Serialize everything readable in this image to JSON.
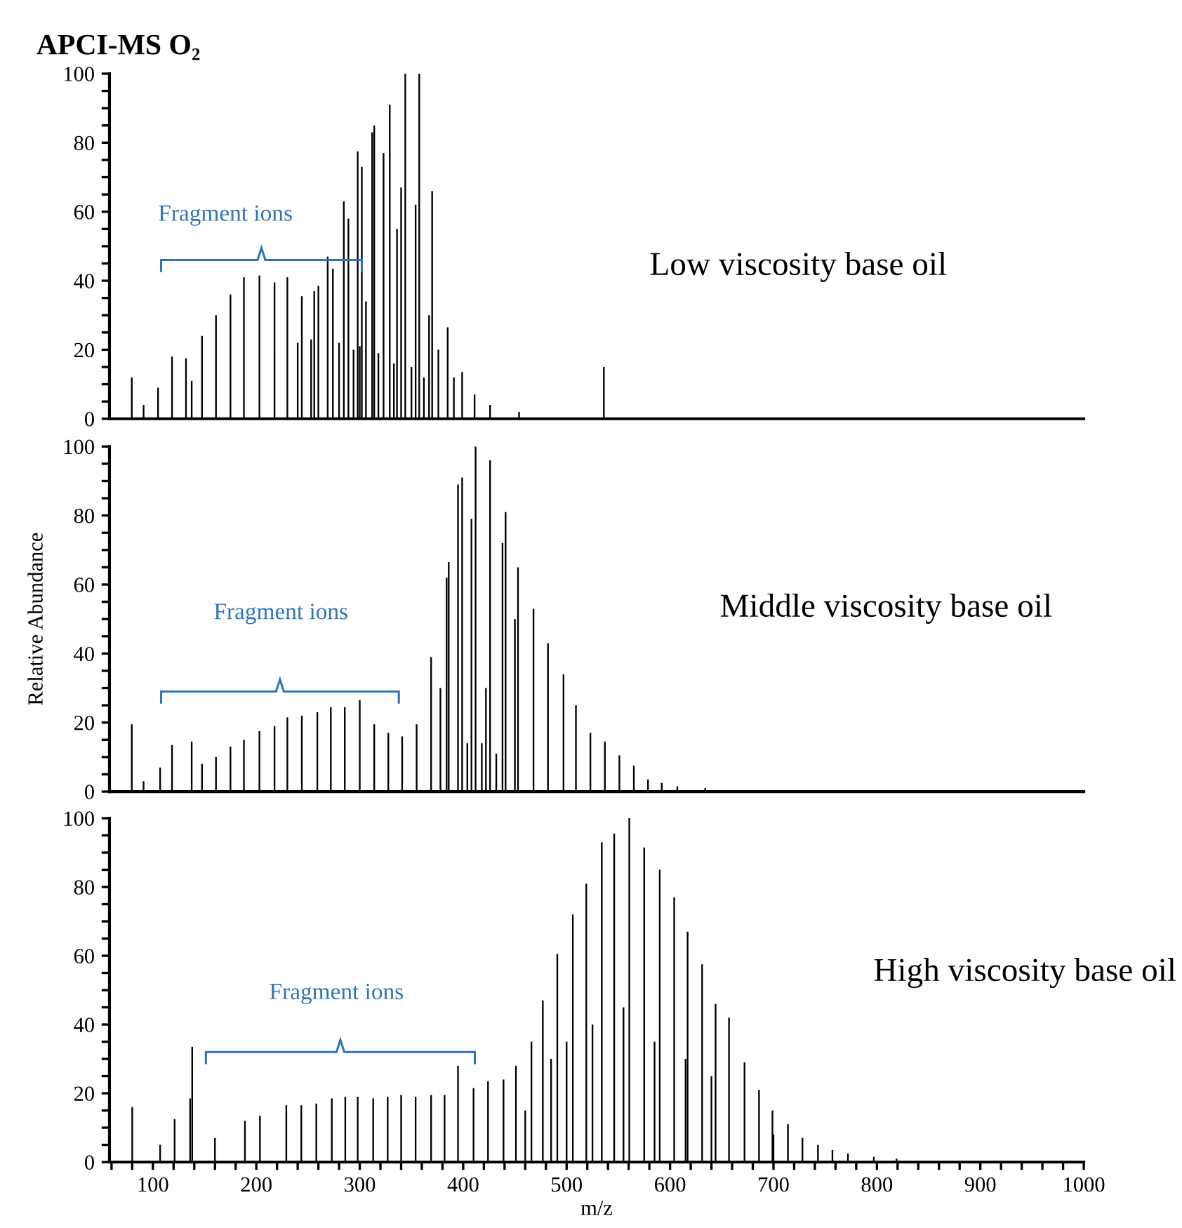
{
  "chart_data": [
    {
      "type": "bar",
      "title": "APCI-MS O₂",
      "xlim": [
        58,
        1000
      ],
      "ylim": [
        0,
        100
      ],
      "tick_labels": "y",
      "yticks": [
        0,
        {
          "value": 5,
          "label": null
        },
        {
          "value": 10,
          "label": null
        },
        {
          "value": 15,
          "label": null
        },
        20,
        {
          "value": 25,
          "label": null
        },
        {
          "value": 30,
          "label": null
        },
        {
          "value": 35,
          "label": null
        },
        40,
        {
          "value": 45,
          "label": null
        },
        {
          "value": 50,
          "label": null
        },
        {
          "value": 55,
          "label": null
        },
        60,
        {
          "value": 65,
          "label": null
        },
        {
          "value": 70,
          "label": null
        },
        {
          "value": 75,
          "label": null
        },
        80,
        {
          "value": 85,
          "label": null
        },
        {
          "value": 90,
          "label": null
        },
        {
          "value": 95,
          "label": null
        },
        100
      ],
      "annotations": [
        "Fragment ions",
        "Low viscosity base oil"
      ],
      "series": [
        {
          "color": "#000000",
          "x": [
            79.6,
            91,
            105,
            118.5,
            132,
            137.5,
            147.5,
            161,
            175,
            188,
            203,
            217.6,
            230,
            240,
            244,
            253,
            256,
            260,
            269,
            274,
            280,
            284.6,
            289,
            294,
            298,
            300,
            302,
            306,
            312,
            314,
            318,
            323,
            329,
            333,
            336,
            340,
            344,
            350,
            354,
            357.5,
            362,
            367,
            370,
            376,
            385,
            391,
            399,
            411,
            426,
            454,
            536
          ],
          "values": [
            12,
            4,
            9,
            18,
            17.5,
            11,
            24,
            30,
            36,
            41,
            41.5,
            39.5,
            41,
            22,
            35.5,
            23,
            37,
            38.5,
            47,
            43.5,
            22,
            63,
            58,
            20,
            77.5,
            21,
            73,
            34,
            83,
            85,
            19,
            77,
            91,
            16,
            55,
            67,
            100,
            15,
            62,
            100,
            12,
            30,
            66,
            20,
            26.5,
            12,
            13.5,
            7,
            4,
            2,
            15
          ]
        }
      ]
    },
    {
      "type": "bar",
      "ylabel": "Relative Abundance",
      "xlim": [
        58,
        1000
      ],
      "ylim": [
        0,
        100
      ],
      "tick_labels": "y",
      "yticks": [
        0,
        {
          "value": 5,
          "label": null
        },
        {
          "value": 10,
          "label": null
        },
        {
          "value": 15,
          "label": null
        },
        20,
        {
          "value": 25,
          "label": null
        },
        {
          "value": 30,
          "label": null
        },
        {
          "value": 35,
          "label": null
        },
        40,
        {
          "value": 45,
          "label": null
        },
        {
          "value": 50,
          "label": null
        },
        {
          "value": 55,
          "label": null
        },
        60,
        {
          "value": 65,
          "label": null
        },
        {
          "value": 70,
          "label": null
        },
        {
          "value": 75,
          "label": null
        },
        80,
        {
          "value": 85,
          "label": null
        },
        {
          "value": 90,
          "label": null
        },
        {
          "value": 95,
          "label": null
        },
        100
      ],
      "annotations": [
        "Fragment ions",
        "Middle viscosity base oil"
      ],
      "series": [
        {
          "color": "#000000",
          "x": [
            79.6,
            91,
            107,
            118.5,
            137.5,
            147.5,
            161,
            175,
            188,
            203,
            217.6,
            230,
            244,
            259,
            272,
            285.5,
            300,
            314,
            327.6,
            341,
            355,
            369,
            378,
            384,
            386,
            395,
            399,
            404,
            408,
            412,
            418,
            422,
            426,
            432,
            438,
            441,
            450,
            453,
            468,
            482,
            497,
            509,
            523,
            537,
            551,
            565,
            578.7,
            592,
            607,
            634
          ],
          "values": [
            19.5,
            3,
            7,
            13.5,
            14.5,
            8,
            10,
            13,
            15,
            17.5,
            19,
            21.5,
            22,
            23,
            24.5,
            24.5,
            26.5,
            19.5,
            17,
            16,
            19.5,
            39,
            30,
            62,
            66.5,
            89,
            91,
            14,
            79,
            100,
            14,
            30,
            96,
            11,
            72,
            81,
            50,
            65,
            53,
            43,
            34,
            25,
            17,
            14.5,
            10.5,
            7.5,
            3.5,
            2.5,
            1.5,
            1
          ]
        }
      ]
    },
    {
      "type": "bar",
      "xlabel": "m/z",
      "xlim": [
        58,
        1000
      ],
      "ylim": [
        0,
        100
      ],
      "xticks": [
        {
          "value": 60,
          "label": null
        },
        {
          "value": 80,
          "label": null
        },
        100,
        {
          "value": 120,
          "label": null
        },
        {
          "value": 140,
          "label": null
        },
        {
          "value": 160,
          "label": null
        },
        {
          "value": 180,
          "label": null
        },
        200,
        {
          "value": 220,
          "label": null
        },
        {
          "value": 240,
          "label": null
        },
        {
          "value": 260,
          "label": null
        },
        {
          "value": 280,
          "label": null
        },
        300,
        {
          "value": 320,
          "label": null
        },
        {
          "value": 340,
          "label": null
        },
        {
          "value": 360,
          "label": null
        },
        {
          "value": 380,
          "label": null
        },
        400,
        {
          "value": 420,
          "label": null
        },
        {
          "value": 440,
          "label": null
        },
        {
          "value": 460,
          "label": null
        },
        {
          "value": 480,
          "label": null
        },
        500,
        {
          "value": 520,
          "label": null
        },
        {
          "value": 540,
          "label": null
        },
        {
          "value": 560,
          "label": null
        },
        {
          "value": 580,
          "label": null
        },
        600,
        {
          "value": 620,
          "label": null
        },
        {
          "value": 640,
          "label": null
        },
        {
          "value": 660,
          "label": null
        },
        {
          "value": 680,
          "label": null
        },
        700,
        {
          "value": 720,
          "label": null
        },
        {
          "value": 740,
          "label": null
        },
        {
          "value": 760,
          "label": null
        },
        {
          "value": 780,
          "label": null
        },
        800,
        {
          "value": 820,
          "label": null
        },
        {
          "value": 840,
          "label": null
        },
        {
          "value": 860,
          "label": null
        },
        {
          "value": 880,
          "label": null
        },
        900,
        {
          "value": 920,
          "label": null
        },
        {
          "value": 940,
          "label": null
        },
        {
          "value": 960,
          "label": null
        },
        {
          "value": 980,
          "label": null
        },
        1000
      ],
      "yticks": [
        0,
        {
          "value": 5,
          "label": null
        },
        {
          "value": 10,
          "label": null
        },
        {
          "value": 15,
          "label": null
        },
        20,
        {
          "value": 25,
          "label": null
        },
        {
          "value": 30,
          "label": null
        },
        {
          "value": 35,
          "label": null
        },
        40,
        {
          "value": 45,
          "label": null
        },
        {
          "value": 50,
          "label": null
        },
        {
          "value": 55,
          "label": null
        },
        60,
        {
          "value": 65,
          "label": null
        },
        {
          "value": 70,
          "label": null
        },
        {
          "value": 75,
          "label": null
        },
        80,
        {
          "value": 85,
          "label": null
        },
        {
          "value": 90,
          "label": null
        },
        {
          "value": 95,
          "label": null
        },
        100
      ],
      "annotations": [
        "Fragment ions",
        "High viscosity base oil"
      ],
      "series": [
        {
          "color": "#000000",
          "x": [
            80,
            107,
            121,
            136,
            138,
            160,
            189,
            203.5,
            229,
            243.5,
            258,
            273,
            286,
            298,
            313,
            327,
            340,
            354,
            369,
            382,
            395,
            410,
            424,
            439,
            451,
            460,
            466,
            477,
            485,
            491,
            500,
            506,
            519,
            525,
            534,
            546,
            555,
            560.6,
            575,
            585,
            590,
            604,
            615,
            617,
            631,
            640,
            644,
            657,
            672,
            686,
            699,
            700,
            714,
            728,
            743,
            757,
            772,
            797,
            819
          ],
          "values": [
            16,
            5,
            12.5,
            18.5,
            33.5,
            7,
            12,
            13.5,
            16.5,
            16.5,
            17,
            18.5,
            19,
            19,
            18.5,
            19,
            19.5,
            19,
            19.5,
            19.5,
            28,
            21.5,
            23.5,
            24,
            28,
            15,
            35,
            47,
            30,
            60.5,
            35,
            72,
            81,
            40,
            93,
            95.5,
            45,
            100,
            91.5,
            35,
            85,
            77,
            30,
            67,
            57.5,
            25,
            46,
            42,
            29,
            21,
            15,
            8,
            11,
            7,
            5,
            3.5,
            2.5,
            1.5,
            1
          ]
        }
      ]
    }
  ]
}
